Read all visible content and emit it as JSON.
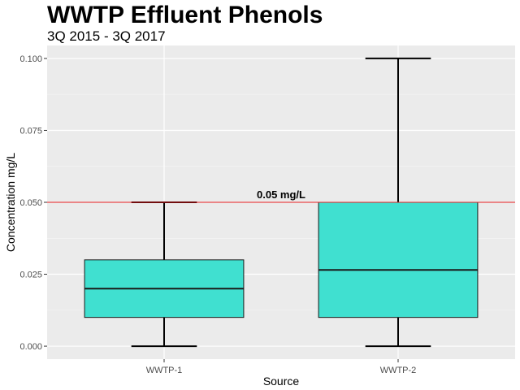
{
  "chart_data": {
    "type": "boxplot",
    "title": "WWTP Effluent Phenols",
    "subtitle": "3Q 2015 - 3Q 2017",
    "xlabel": "Source",
    "ylabel": "Concentration mg/L",
    "ylim": [
      -0.0045,
      0.1045
    ],
    "yticks": [
      0.0,
      0.025,
      0.05,
      0.075,
      0.1
    ],
    "ytick_labels": [
      "0.000",
      "0.025",
      "0.050",
      "0.075",
      "0.100"
    ],
    "categories": [
      "WWTP-1",
      "WWTP-2"
    ],
    "boxes": [
      {
        "category": "WWTP-1",
        "min": 0.0,
        "q1": 0.01,
        "median": 0.02,
        "q3": 0.03,
        "max": 0.05
      },
      {
        "category": "WWTP-2",
        "min": 0.0,
        "q1": 0.01,
        "median": 0.0265,
        "q3": 0.05,
        "max": 0.1
      }
    ],
    "reference_line": {
      "value": 0.05,
      "label": "0.05 mg/L",
      "color": "#e41a1c"
    },
    "box_fill": "#40e0d0",
    "panel_background": "#ebebeb",
    "grid": true
  }
}
